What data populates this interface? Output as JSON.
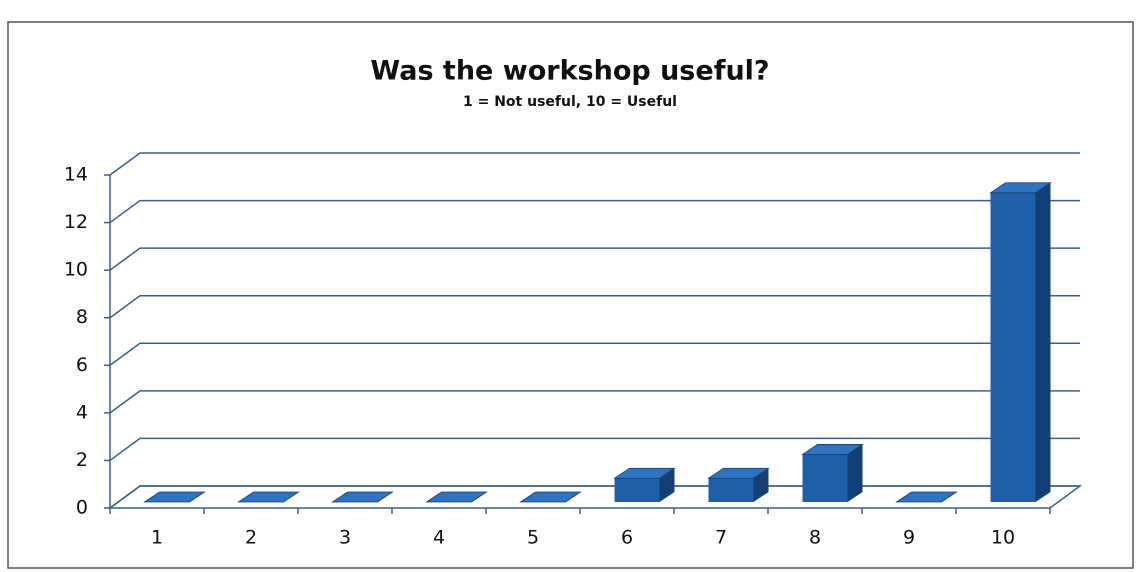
{
  "chart_data": {
    "type": "bar3d",
    "title": "Was the workshop useful?",
    "subtitle": "1 = Not useful, 10 = Useful",
    "categories": [
      "1",
      "2",
      "3",
      "4",
      "5",
      "6",
      "7",
      "8",
      "9",
      "10"
    ],
    "values": [
      0,
      0,
      0,
      0,
      0,
      1,
      1,
      2,
      0,
      13
    ],
    "color": "#1f5fa8",
    "ylim": [
      0,
      14
    ],
    "yticks": [
      0,
      2,
      4,
      6,
      8,
      10,
      12,
      14
    ],
    "grid": true
  }
}
